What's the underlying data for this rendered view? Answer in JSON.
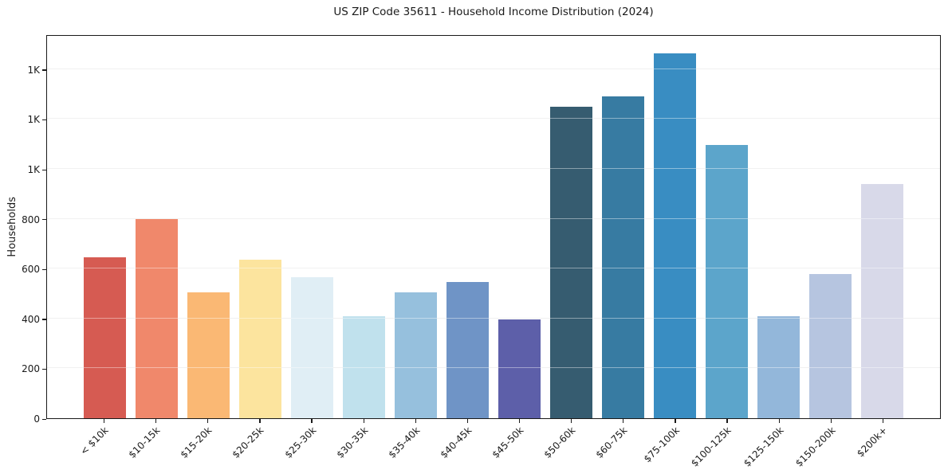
{
  "chart_data": {
    "type": "bar",
    "title": "US ZIP Code 35611 - Household Income Distribution (2024)",
    "xlabel": "",
    "ylabel": "Households",
    "categories": [
      "< $10k",
      "$10-15k",
      "$15-20k",
      "$20-25k",
      "$25-30k",
      "$30-35k",
      "$35-40k",
      "$40-45k",
      "$45-50k",
      "$50-60k",
      "$60-75k",
      "$75-100k",
      "$100-125k",
      "$125-150k",
      "$150-200k",
      "$200k+"
    ],
    "values": [
      645,
      800,
      505,
      635,
      565,
      410,
      505,
      545,
      395,
      1250,
      1290,
      1465,
      1095,
      410,
      580,
      940
    ],
    "bar_colors": [
      "#d65b52",
      "#f0886b",
      "#fab874",
      "#fce49e",
      "#e0eef5",
      "#c0e1ed",
      "#96c0dd",
      "#6f94c6",
      "#5d5fa9",
      "#365c70",
      "#377ba2",
      "#398dc2",
      "#5ca5cb",
      "#93b7da",
      "#b6c5e0",
      "#d8d9e9"
    ],
    "ylim": [
      0,
      1540
    ],
    "yticks": {
      "values": [
        0,
        200,
        400,
        600,
        800,
        1000,
        1200,
        1400
      ],
      "labels": [
        "0",
        "200",
        "400",
        "600",
        "800",
        "1K",
        "1K",
        "1K"
      ]
    },
    "grid": "horizontal",
    "grid_color": "#e7e7e7",
    "legend": "none",
    "spine_color": "#1a1a1a",
    "background_color": "#ffffff"
  }
}
